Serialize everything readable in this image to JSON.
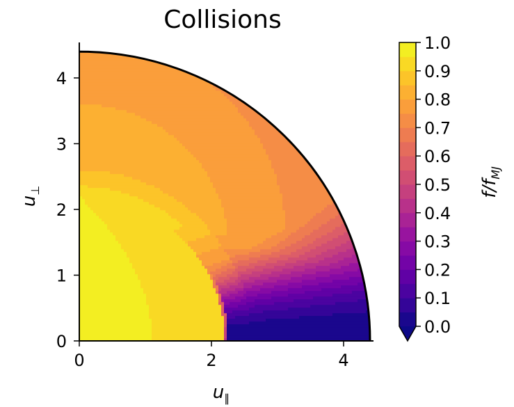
{
  "chart_data": {
    "type": "heatmap",
    "title": "Collisions",
    "xlabel": "u",
    "xlabel_sub": "∥",
    "ylabel": "u",
    "ylabel_sub": "⊥",
    "xlim": [
      0,
      4.55
    ],
    "ylim": [
      0,
      4.5
    ],
    "xticks": [
      0,
      2,
      4
    ],
    "yticks": [
      0,
      1,
      2,
      3,
      4
    ],
    "domain_radius": 4.4,
    "colorbar": {
      "label_main": "f/f",
      "label_sub": "MJ",
      "colormap": "plasma",
      "levels": [
        0.0,
        0.05,
        0.1,
        0.15,
        0.2,
        0.25,
        0.3,
        0.35,
        0.4,
        0.45,
        0.5,
        0.55,
        0.6,
        0.65,
        0.7,
        0.75,
        0.8,
        0.85,
        0.9,
        0.95,
        1.0
      ],
      "ticks": [
        "0.0",
        "0.1",
        "0.2",
        "0.3",
        "0.4",
        "0.5",
        "0.6",
        "0.7",
        "0.8",
        "0.9",
        "1.0"
      ],
      "extend": "min"
    },
    "regions": [
      {
        "description": "value ~0.95 core",
        "outer_radius": 2.2,
        "x_extent": 1.75
      },
      {
        "value_near_x_axis": 0.9,
        "x_at_axis": 1.95
      },
      {
        "value_near_x_axis": 0.85,
        "x_at_axis": 2.15
      },
      {
        "value_at_top_edge": 0.8,
        "y_at_axis": 4.4
      },
      {
        "value_zero_region": 0.0,
        "x_start": 2.25,
        "angle_deg_max": 28
      }
    ]
  }
}
